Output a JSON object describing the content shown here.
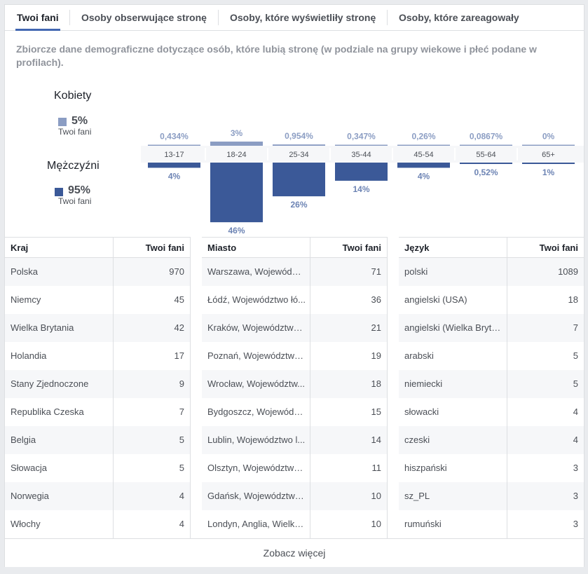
{
  "tabs": [
    {
      "label": "Twoi fani",
      "active": true
    },
    {
      "label": "Osoby obserwujące stronę",
      "active": false
    },
    {
      "label": "Osoby, które wyświetliły stronę",
      "active": false
    },
    {
      "label": "Osoby, które zareagowały",
      "active": false
    }
  ],
  "description": "Zbiorcze dane demograficzne dotyczące osób, które lubią stronę (w podziale na grupy wiekowe i płeć podane w profilach).",
  "gender": {
    "women": {
      "label": "Kobiety",
      "pct": "5%",
      "sub": "Twoi fani",
      "color": "#8b9dc3"
    },
    "men": {
      "label": "Mężczyźni",
      "pct": "95%",
      "sub": "Twoi fani",
      "color": "#3b5998"
    }
  },
  "chart_data": {
    "type": "bar",
    "categories": [
      "13-17",
      "18-24",
      "25-34",
      "35-44",
      "45-54",
      "55-64",
      "65+"
    ],
    "series": [
      {
        "name": "Kobiety",
        "values": [
          0.434,
          3,
          0.954,
          0.347,
          0.26,
          0.0867,
          0
        ],
        "labels": [
          "0,434%",
          "3%",
          "0,954%",
          "0,347%",
          "0,26%",
          "0,0867%",
          "0%"
        ]
      },
      {
        "name": "Mężczyźni",
        "values": [
          4,
          46,
          26,
          14,
          4,
          0.52,
          1
        ],
        "labels": [
          "4%",
          "46%",
          "26%",
          "14%",
          "4%",
          "0,52%",
          "1%"
        ]
      }
    ]
  },
  "tables": [
    {
      "headers": [
        "Kraj",
        "Twoi fani"
      ],
      "rows": [
        [
          "Polska",
          "970"
        ],
        [
          "Niemcy",
          "45"
        ],
        [
          "Wielka Brytania",
          "42"
        ],
        [
          "Holandia",
          "17"
        ],
        [
          "Stany Zjednoczone",
          "9"
        ],
        [
          "Republika Czeska",
          "7"
        ],
        [
          "Belgia",
          "5"
        ],
        [
          "Słowacja",
          "5"
        ],
        [
          "Norwegia",
          "4"
        ],
        [
          "Włochy",
          "4"
        ]
      ]
    },
    {
      "headers": [
        "Miasto",
        "Twoi fani"
      ],
      "rows": [
        [
          "Warszawa, Województ...",
          "71"
        ],
        [
          "Łódź, Województwo łó...",
          "36"
        ],
        [
          "Kraków, Województwo ...",
          "21"
        ],
        [
          "Poznań, Województwo ...",
          "19"
        ],
        [
          "Wrocław, Województw...",
          "18"
        ],
        [
          "Bydgoszcz, Województ...",
          "15"
        ],
        [
          "Lublin, Województwo l...",
          "14"
        ],
        [
          "Olsztyn, Województwo ...",
          "11"
        ],
        [
          "Gdańsk, Województwo ...",
          "10"
        ],
        [
          "Londyn, Anglia, Wielka...",
          "10"
        ]
      ]
    },
    {
      "headers": [
        "Język",
        "Twoi fani"
      ],
      "rows": [
        [
          "polski",
          "1089"
        ],
        [
          "angielski (USA)",
          "18"
        ],
        [
          "angielski (Wielka Bryta...",
          "7"
        ],
        [
          "arabski",
          "5"
        ],
        [
          "niemiecki",
          "5"
        ],
        [
          "słowacki",
          "4"
        ],
        [
          "czeski",
          "4"
        ],
        [
          "hiszpański",
          "3"
        ],
        [
          "sz_PL",
          "3"
        ],
        [
          "rumuński",
          "3"
        ]
      ]
    }
  ],
  "see_more": "Zobacz więcej"
}
